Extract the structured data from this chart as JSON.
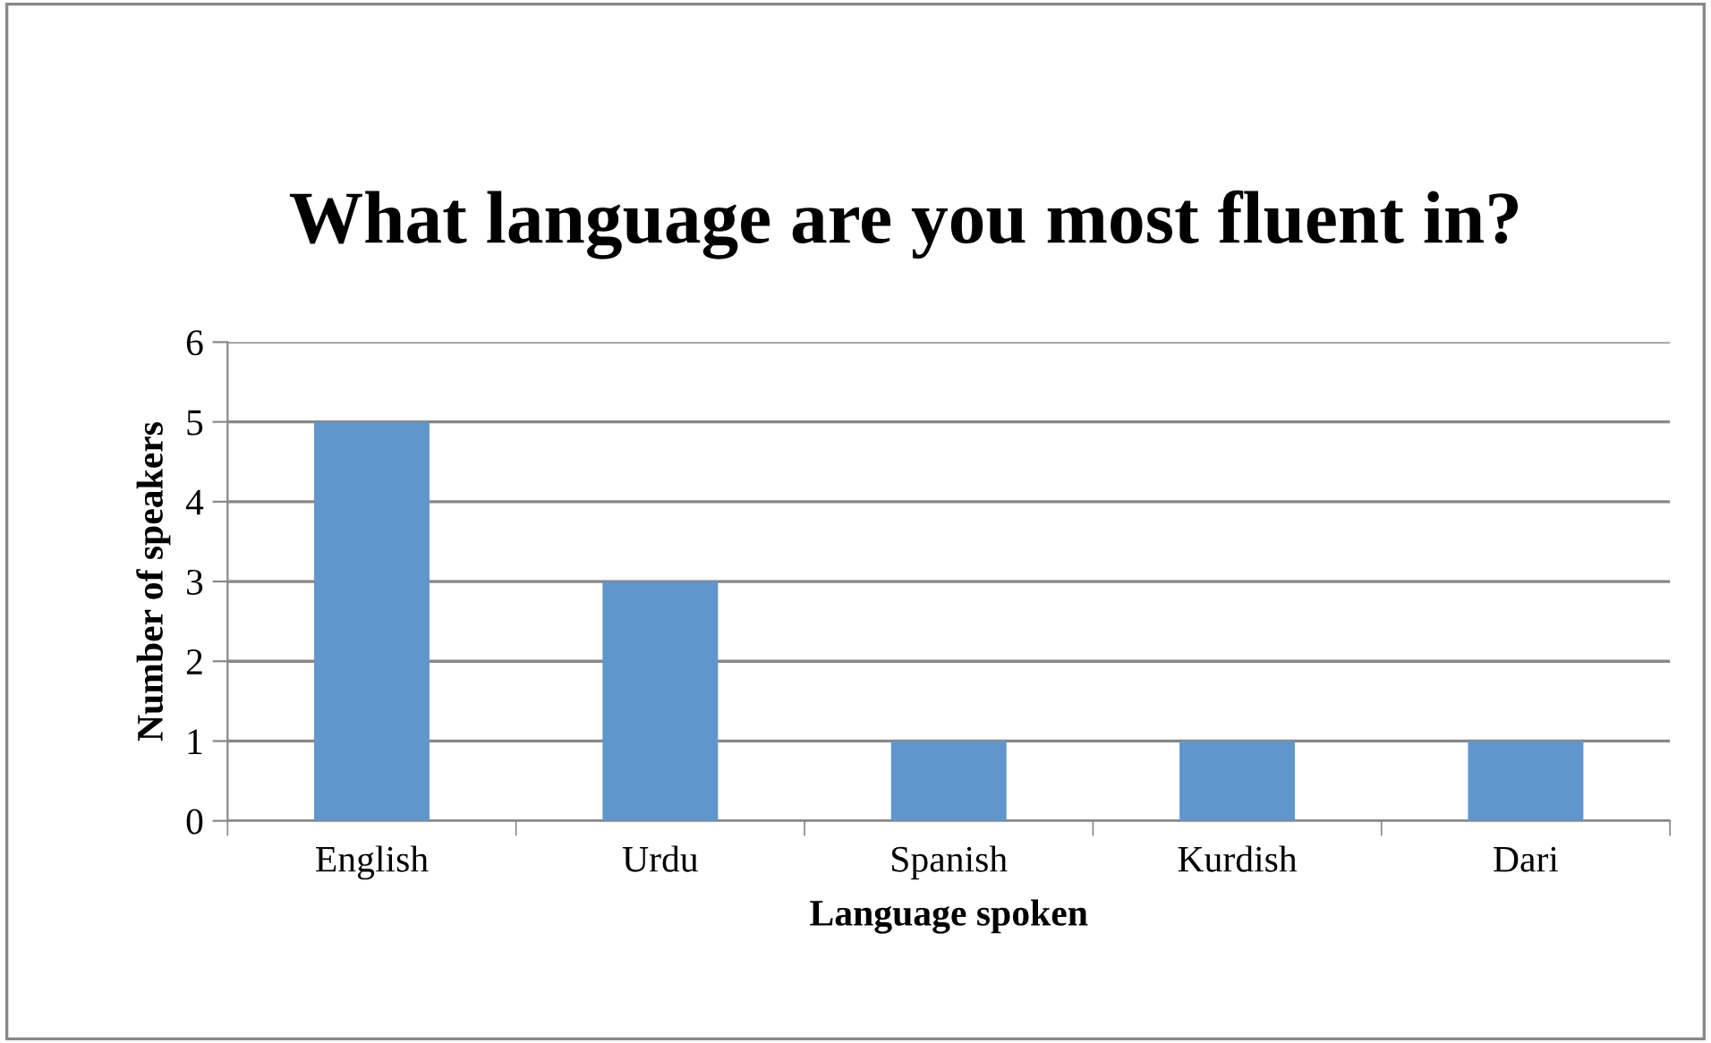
{
  "chart_data": {
    "type": "bar",
    "title": "What language are you most fluent in?",
    "xlabel": "Language spoken",
    "ylabel": "Number of speakers",
    "categories": [
      "English",
      "Urdu",
      "Spanish",
      "Kurdish",
      "Dari"
    ],
    "values": [
      5,
      3,
      1,
      1,
      1
    ],
    "color": "#6096cb",
    "ylim": [
      0,
      6
    ],
    "yticks": [
      0,
      1,
      2,
      3,
      4,
      5,
      6
    ],
    "grid": "y",
    "legend": false
  }
}
